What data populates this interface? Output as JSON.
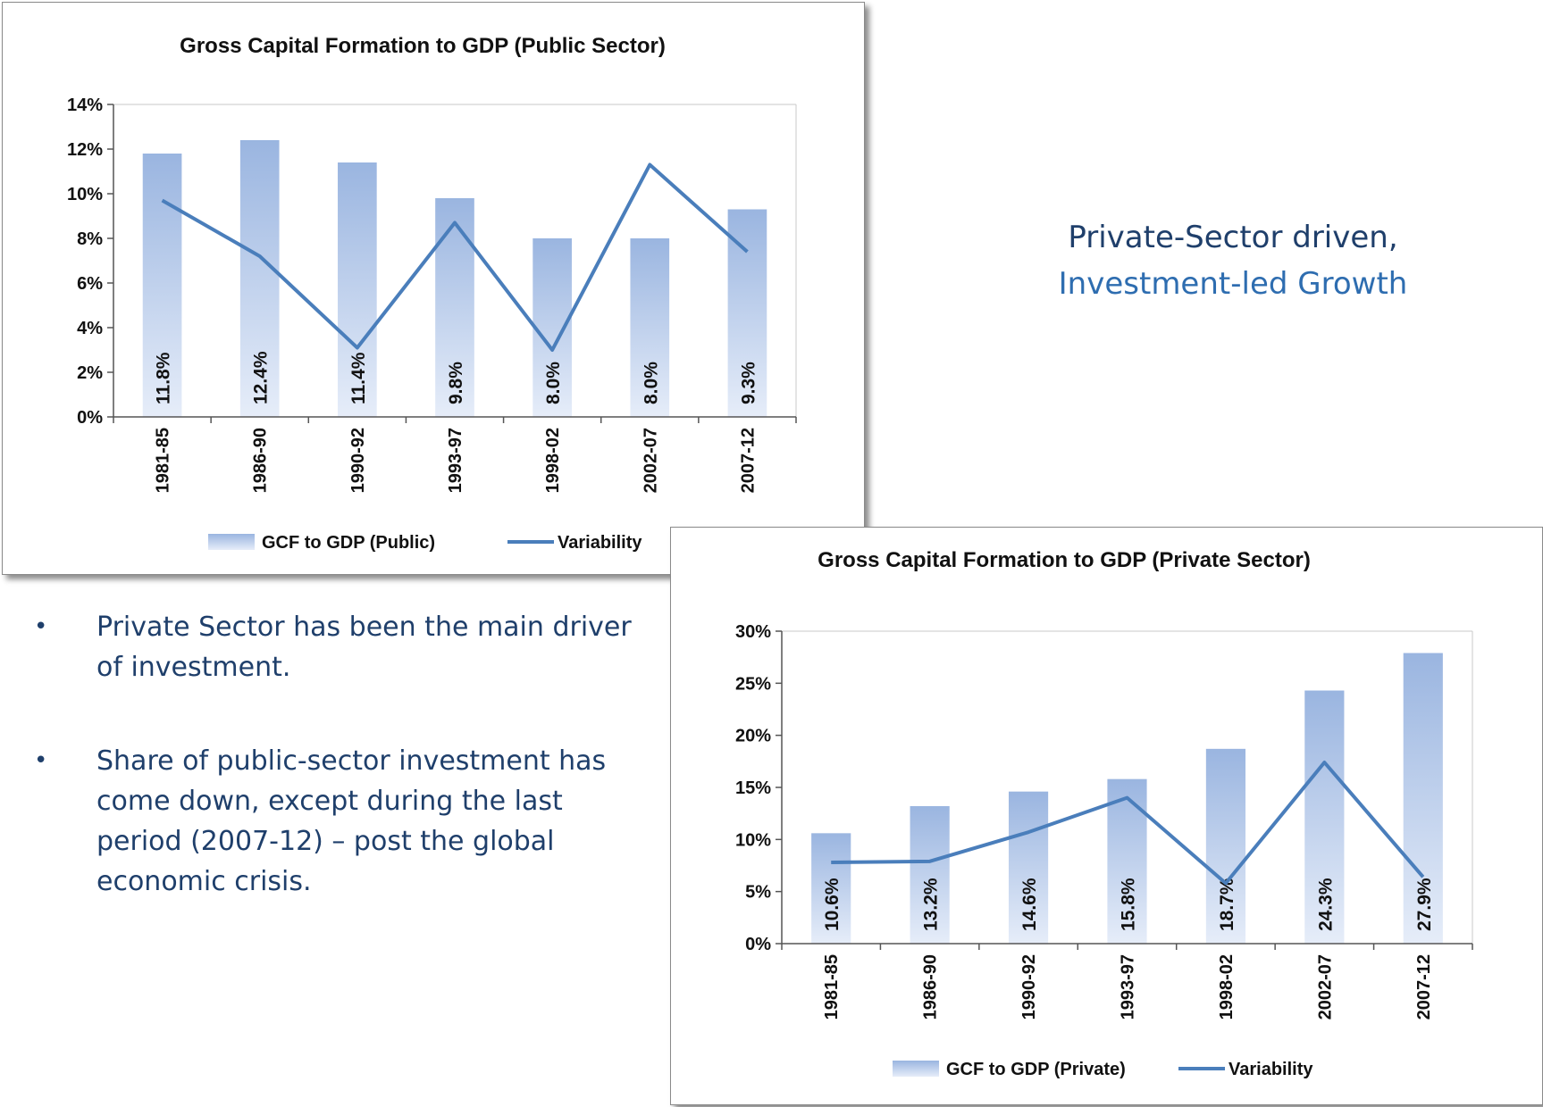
{
  "chart_data": [
    {
      "type": "bar",
      "title": "Gross Capital Formation to GDP (Public Sector)",
      "categories": [
        "1981-85",
        "1986-90",
        "1990-92",
        "1993-97",
        "1998-02",
        "2002-07",
        "2007-12"
      ],
      "series": [
        {
          "name": "GCF to GDP (Public)",
          "type": "bar",
          "values": [
            11.8,
            12.4,
            11.4,
            9.8,
            8.0,
            8.0,
            9.3
          ]
        },
        {
          "name": "Variability",
          "type": "line",
          "values": [
            9.7,
            7.2,
            3.1,
            8.7,
            3.0,
            11.3,
            7.4
          ]
        }
      ],
      "data_labels": [
        "11.8%",
        "12.4%",
        "11.4%",
        "9.8%",
        "8.0%",
        "8.0%",
        "9.3%"
      ],
      "ylim": [
        0,
        14
      ],
      "yticks": [
        0,
        2,
        4,
        6,
        8,
        10,
        12,
        14
      ],
      "ytick_labels": [
        "0%",
        "2%",
        "4%",
        "6%",
        "8%",
        "10%",
        "12%",
        "14%"
      ],
      "legend": "bottom"
    },
    {
      "type": "bar",
      "title": "Gross Capital Formation to GDP (Private  Sector)",
      "categories": [
        "1981-85",
        "1986-90",
        "1990-92",
        "1993-97",
        "1998-02",
        "2002-07",
        "2007-12"
      ],
      "series": [
        {
          "name": "GCF to GDP (Private)",
          "type": "bar",
          "values": [
            10.6,
            13.2,
            14.6,
            15.8,
            18.7,
            24.3,
            27.9
          ]
        },
        {
          "name": "Variability",
          "type": "line",
          "values": [
            7.8,
            7.9,
            10.7,
            14.0,
            5.8,
            17.4,
            6.4
          ]
        }
      ],
      "data_labels": [
        "10.6%",
        "13.2%",
        "14.6%",
        "15.8%",
        "18.7%",
        "24.3%",
        "27.9%"
      ],
      "ylim": [
        0,
        30
      ],
      "yticks": [
        0,
        5,
        10,
        15,
        20,
        25,
        30
      ],
      "ytick_labels": [
        "0%",
        "5%",
        "10%",
        "15%",
        "20%",
        "25%",
        "30%"
      ],
      "legend": "bottom"
    }
  ],
  "tagline": {
    "line1": "Private-Sector driven,",
    "line2": "Investment-led Growth"
  },
  "bullets": [
    {
      "symbol": "•",
      "text": "Private Sector has been the main driver of investment."
    },
    {
      "symbol": "•",
      "text": "Share of public-sector investment has come down, except during the last period (2007-12) – post the global economic crisis."
    }
  ],
  "colors": {
    "bar_top": "#9ab5e0",
    "bar_bottom": "#e6edf9",
    "line": "#4a7ebb",
    "text_dark": "#1f3f6b",
    "text_blue": "#2e6db0"
  }
}
